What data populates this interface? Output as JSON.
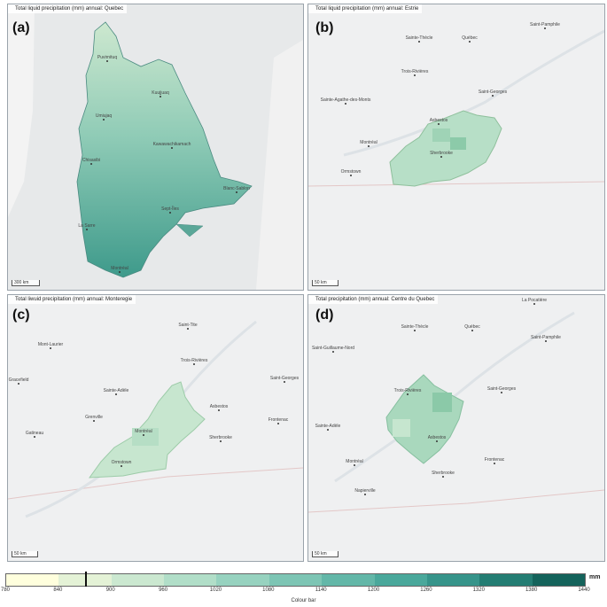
{
  "panels": [
    {
      "label": "(a)",
      "title": "Total liquid precipitation (mm) annual: Quebec",
      "scale": "300 km",
      "cities": [
        "Puvirnituq",
        "Kuujjuaq",
        "Umiujaq",
        "Kawawachikamach",
        "Chisasibi",
        "Blanc-Sablon",
        "Sept-Îles",
        "La Sarre",
        "Montréal"
      ]
    },
    {
      "label": "(b)",
      "title": "Total liquid precipitation (mm) annual: Estrie",
      "scale": "50 km",
      "cities": [
        "Sainte-Thècle",
        "Québec",
        "Saint-Pamphile",
        "Trois-Rivières",
        "Saint-Georges",
        "Sainte-Agathe-des-Monts",
        "Asbestos",
        "Montréal",
        "Sherbrooke",
        "Ormstown"
      ]
    },
    {
      "label": "(c)",
      "title": "Total liwuid precipitation (mm) annual: Monteregie",
      "scale": "50 km",
      "cities": [
        "Saint-Tite",
        "Mont-Laurier",
        "Trois-Rivières",
        "Saint-Georges",
        "Gracefield",
        "Sainte-Adèle",
        "Asbestos",
        "Frontenac",
        "Grenville",
        "Gatineau",
        "Montréal",
        "Sherbrooke",
        "Ormstown"
      ]
    },
    {
      "label": "(d)",
      "title": "Total precipitation (mm) annual: Centre du Quebec",
      "scale": "50 km",
      "cities": [
        "La Pocatière",
        "Sainte-Thècle",
        "Québec",
        "Saint-Pamphile",
        "Saint-Guillaume-Nord",
        "Trois-Rivières",
        "Saint-Georges",
        "Sainte-Adèle",
        "Asbestos",
        "Frontenac",
        "Montréal",
        "Sherbrooke",
        "Napierville"
      ]
    }
  ],
  "colorbar": {
    "unit": "mm",
    "title": "Colour bar",
    "ticks": [
      "780",
      "840",
      "900",
      "960",
      "1020",
      "1080",
      "1140",
      "1200",
      "1260",
      "1320",
      "1380",
      "1440"
    ],
    "colors": [
      "#ffffdd",
      "#e4f2d6",
      "#cbe8d0",
      "#b1dec8",
      "#97d2bf",
      "#7dc5b4",
      "#63b7a8",
      "#4aa89b",
      "#36948a",
      "#247d73",
      "#14635b",
      "#063f37"
    ],
    "marker_value": 870
  }
}
